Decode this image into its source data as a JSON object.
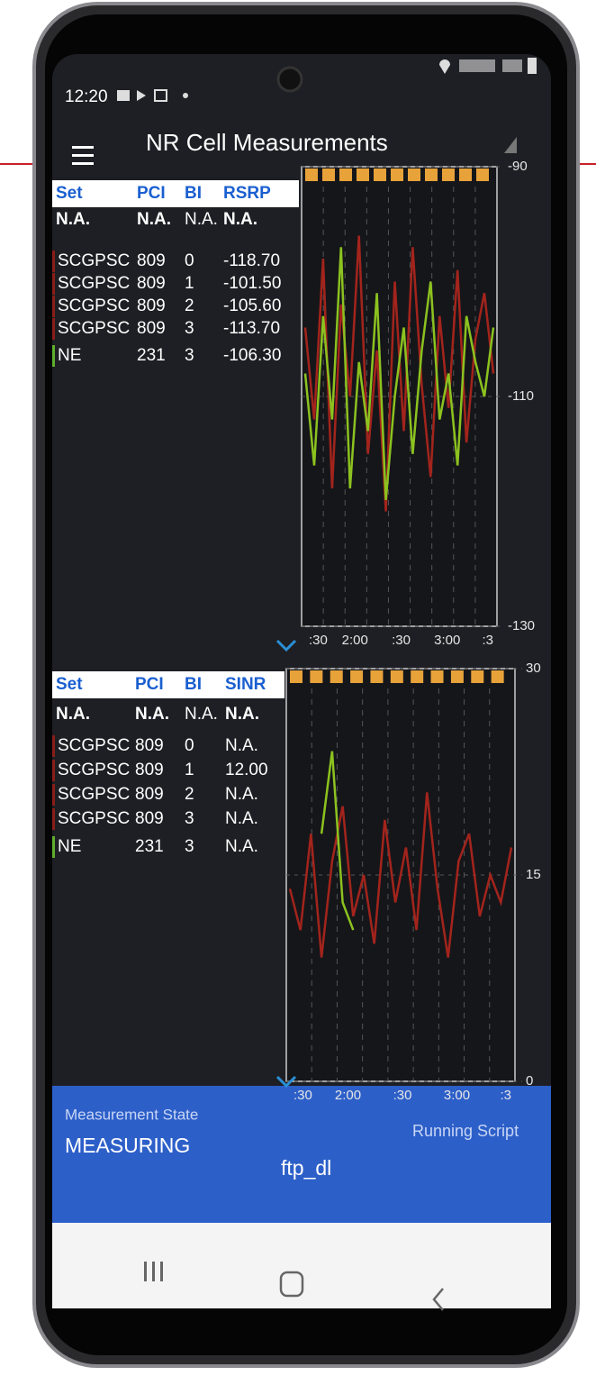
{
  "status_bar": {
    "time": "12:20"
  },
  "app_bar": {
    "title": "NR Cell Measurements"
  },
  "panels": [
    {
      "table": {
        "header": [
          "Set",
          "PCI",
          "BI",
          "RSRP"
        ],
        "rows": [
          [
            "N.A.",
            "N.A.",
            "N.A.",
            "N.A."
          ],
          [
            "SCGPSC",
            "809",
            "0",
            "-118.70"
          ],
          [
            "SCGPSC",
            "809",
            "1",
            "-101.50"
          ],
          [
            "SCGPSC",
            "809",
            "2",
            "-105.60"
          ],
          [
            "SCGPSC",
            "809",
            "3",
            "-113.70"
          ],
          [
            "NE",
            "231",
            "3",
            "-106.30"
          ]
        ]
      },
      "chart": {
        "ylim": [
          -130,
          -90
        ],
        "yticks": [
          -90,
          -110,
          -130
        ],
        "xtick_labels": [
          ":30",
          "2:00",
          ":30",
          "3:00",
          ":3"
        ],
        "series": [
          {
            "color": "#a3241c",
            "values": [
              -104,
              -112,
              -98,
              -118,
              -102,
              -110,
              -96,
              -115,
              -106,
              -120,
              -100,
              -113,
              -97,
              -109,
              -117,
              -103,
              -111,
              -99,
              -114,
              -105,
              -101,
              -108
            ]
          },
          {
            "color": "#8cc21f",
            "values": [
              -108,
              -116,
              -103,
              -112,
              -97,
              -118,
              -107,
              -113,
              -101,
              -119,
              -110,
              -104,
              -115,
              -106,
              -100,
              -112,
              -108,
              -116,
              -103,
              -107,
              -110,
              -104
            ]
          }
        ]
      }
    },
    {
      "table": {
        "header": [
          "Set",
          "PCI",
          "BI",
          "SINR"
        ],
        "rows": [
          [
            "N.A.",
            "N.A.",
            "N.A.",
            "N.A."
          ],
          [
            "SCGPSC",
            "809",
            "0",
            "N.A."
          ],
          [
            "SCGPSC",
            "809",
            "1",
            "12.00"
          ],
          [
            "SCGPSC",
            "809",
            "2",
            "N.A."
          ],
          [
            "SCGPSC",
            "809",
            "3",
            "N.A."
          ],
          [
            "NE",
            "231",
            "3",
            "N.A."
          ]
        ]
      },
      "chart": {
        "ylim": [
          0,
          30
        ],
        "yticks": [
          30,
          15,
          0
        ],
        "xtick_labels": [
          ":30",
          "2:00",
          ":30",
          "3:00",
          ":3"
        ],
        "series": [
          {
            "color": "#a3241c",
            "values": [
              14,
              11,
              18,
              9,
              16,
              20,
              12,
              15,
              10,
              19,
              13,
              17,
              11,
              21,
              14,
              9,
              16,
              18,
              12,
              15,
              13,
              17
            ]
          },
          {
            "color": "#8cc21f",
            "values": [
              null,
              null,
              null,
              18,
              24,
              13,
              11,
              null,
              null,
              null,
              null,
              null,
              null,
              null,
              null,
              null,
              null,
              null,
              null,
              null,
              null,
              null
            ]
          }
        ]
      }
    }
  ],
  "footer": {
    "state_label": "Measurement State",
    "state": "MEASURING",
    "script": "ftp_dl",
    "script_label": "Running Script"
  }
}
